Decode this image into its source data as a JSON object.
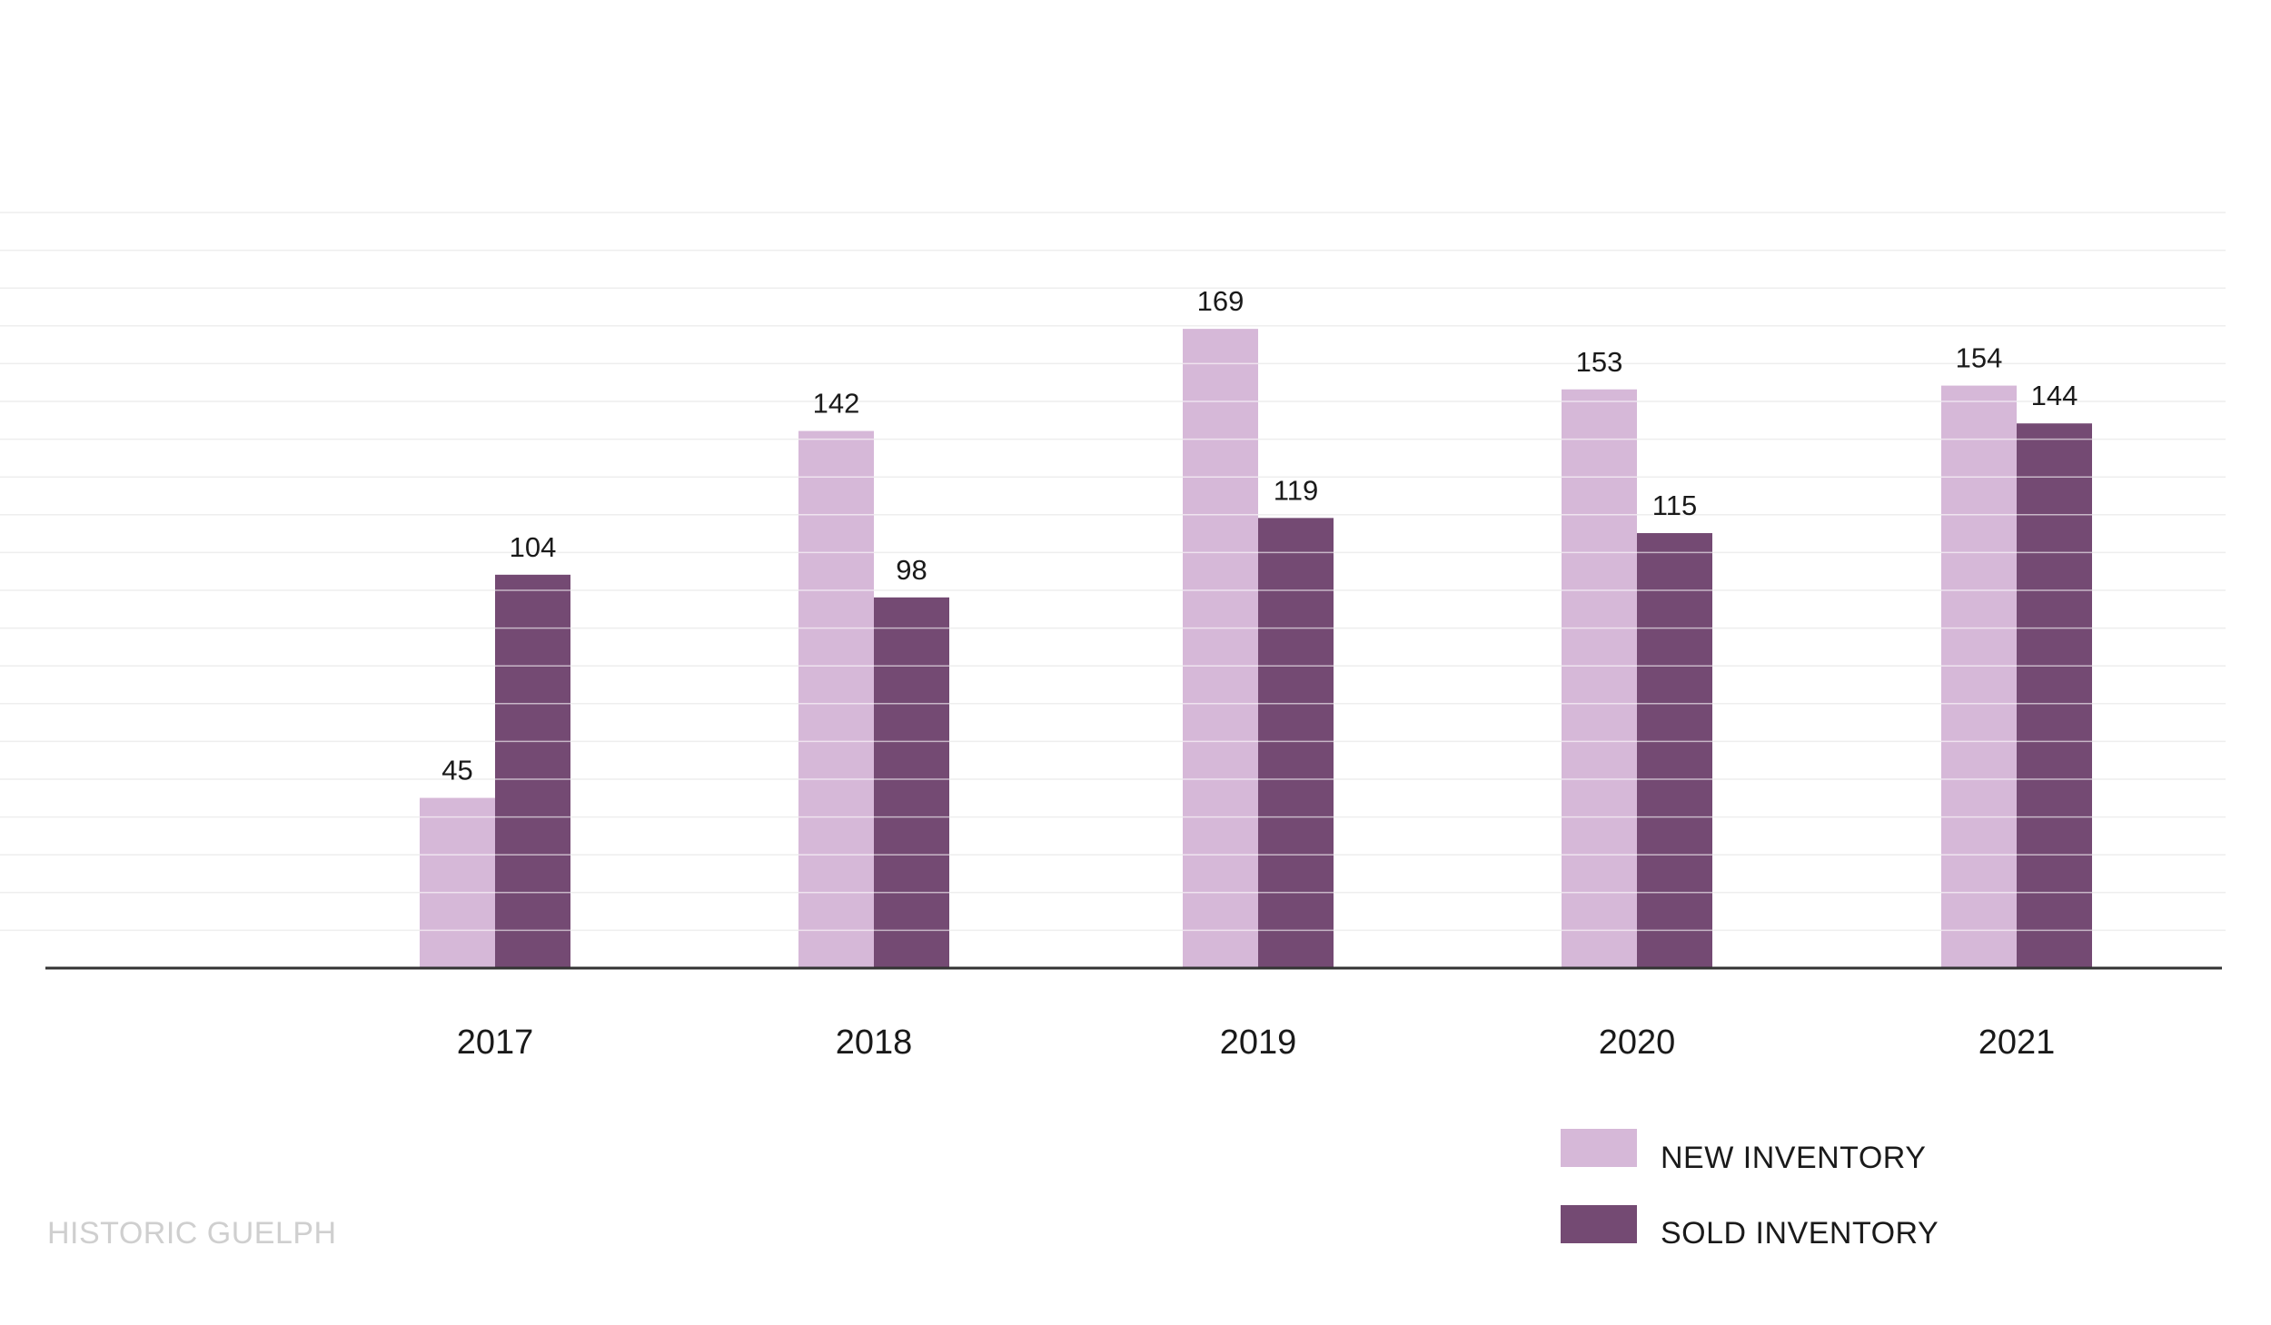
{
  "chart_data": {
    "type": "bar",
    "categories": [
      "2017",
      "2018",
      "2019",
      "2020",
      "2021"
    ],
    "series": [
      {
        "name": "NEW INVENTORY",
        "values": [
          45,
          142,
          169,
          153,
          154
        ],
        "color": "#d6b8d8"
      },
      {
        "name": "SOLD INVENTORY",
        "values": [
          104,
          98,
          119,
          115,
          144
        ],
        "color": "#744a73"
      }
    ],
    "title": "",
    "xlabel": "",
    "ylabel": "",
    "ylim": [
      0,
      200
    ],
    "grid": true,
    "legend_position": "bottom-right"
  },
  "footer": {
    "watermark": "HISTORIC GUELPH"
  },
  "colors": {
    "axis": "#333333",
    "grid": "#eeeeee",
    "bar_grid": "#ffffff"
  }
}
